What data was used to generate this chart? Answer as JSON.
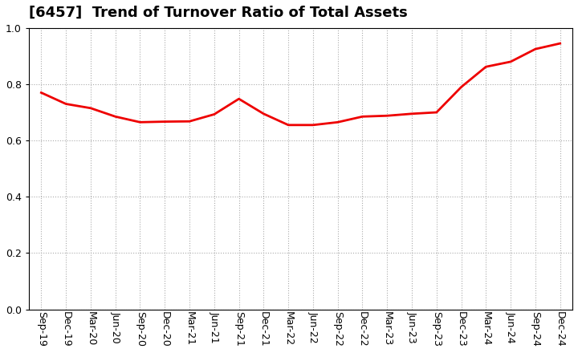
{
  "title": "[6457]  Trend of Turnover Ratio of Total Assets",
  "labels": [
    "Sep-19",
    "Dec-19",
    "Mar-20",
    "Jun-20",
    "Sep-20",
    "Dec-20",
    "Mar-21",
    "Jun-21",
    "Sep-21",
    "Dec-21",
    "Mar-22",
    "Jun-22",
    "Sep-22",
    "Dec-22",
    "Mar-23",
    "Jun-23",
    "Sep-23",
    "Dec-23",
    "Mar-24",
    "Jun-24",
    "Sep-24",
    "Dec-24"
  ],
  "values": [
    0.77,
    0.73,
    0.715,
    0.685,
    0.665,
    0.667,
    0.668,
    0.693,
    0.748,
    0.695,
    0.655,
    0.655,
    0.665,
    0.685,
    0.688,
    0.695,
    0.7,
    0.79,
    0.862,
    0.88,
    0.925,
    0.945
  ],
  "line_color": "#ee0000",
  "line_width": 2.0,
  "ylim": [
    0.0,
    1.0
  ],
  "yticks": [
    0.0,
    0.2,
    0.4,
    0.6,
    0.8,
    1.0
  ],
  "background_color": "#ffffff",
  "plot_area_color": "#ffffff",
  "grid_color": "#aaaaaa",
  "title_fontsize": 13,
  "axis_fontsize": 9,
  "title_fontweight": "bold"
}
